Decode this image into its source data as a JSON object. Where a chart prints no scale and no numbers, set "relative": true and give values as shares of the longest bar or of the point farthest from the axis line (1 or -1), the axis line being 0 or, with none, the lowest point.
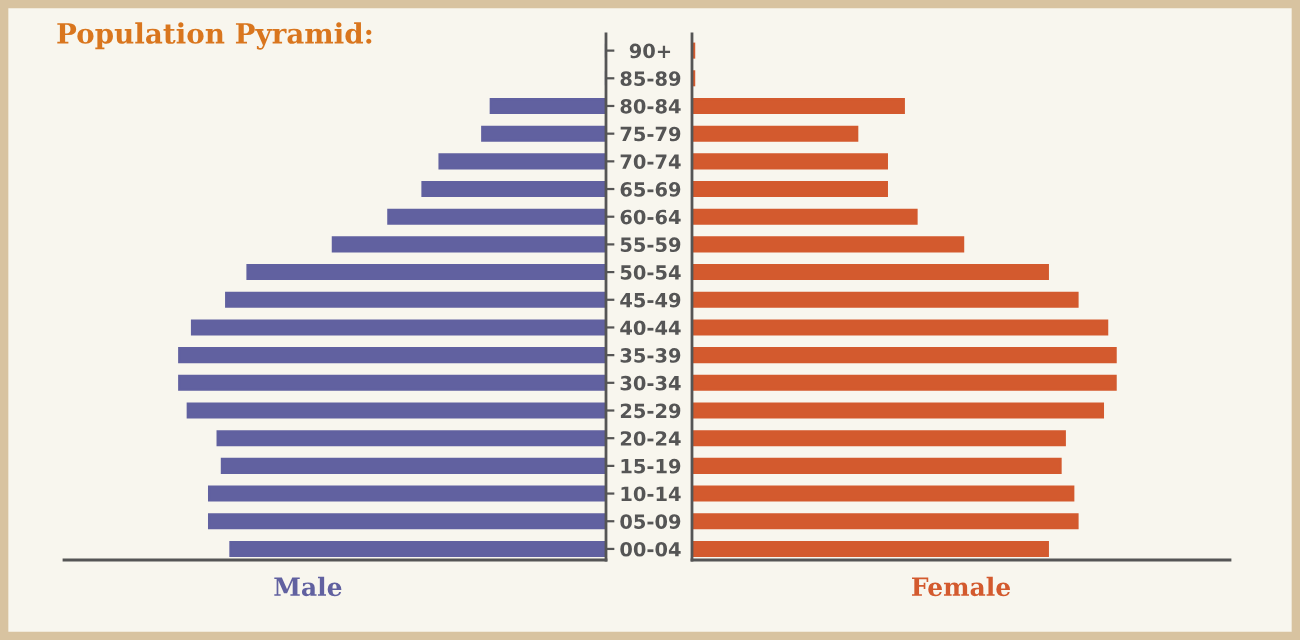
{
  "chart_data": [
    {
      "type": "bar",
      "orientation": "horizontal",
      "relative": true,
      "title": "Population Pyramid:",
      "legend": false,
      "grid": false,
      "categories": [
        "90+",
        "85-89",
        "80-84",
        "75-79",
        "70-74",
        "65-69",
        "60-64",
        "55-59",
        "50-54",
        "45-49",
        "40-44",
        "35-39",
        "30-34",
        "25-29",
        "20-24",
        "15-19",
        "10-14",
        "05-09",
        "00-04"
      ],
      "series": [
        {
          "name": "Male",
          "color": "#6161a0",
          "values": [
            0,
            0,
            -0.27,
            -0.29,
            -0.39,
            -0.43,
            -0.51,
            -0.64,
            -0.84,
            -0.89,
            -0.97,
            -1.0,
            -1.0,
            -0.98,
            -0.91,
            -0.9,
            -0.93,
            -0.93,
            -0.88
          ]
        }
      ]
    },
    {
      "type": "bar",
      "orientation": "horizontal",
      "relative": true,
      "legend": false,
      "grid": false,
      "categories": [
        null,
        null,
        null,
        null,
        null,
        null,
        null,
        null,
        null,
        null,
        null,
        null,
        null,
        null,
        null,
        null,
        null,
        null,
        null
      ],
      "series": [
        {
          "name": "Female",
          "color": "#d35a2e",
          "values": [
            0.005,
            0.005,
            0.5,
            0.39,
            0.46,
            0.46,
            0.53,
            0.64,
            0.84,
            0.91,
            0.98,
            1.0,
            1.0,
            0.97,
            0.88,
            0.87,
            0.9,
            0.91,
            0.84
          ]
        }
      ]
    }
  ]
}
